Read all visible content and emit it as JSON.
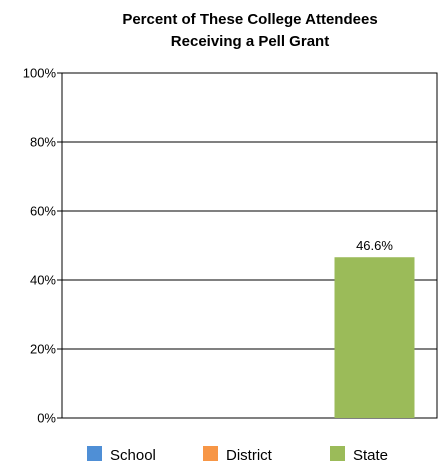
{
  "chart_data": {
    "type": "bar",
    "title_lines": [
      "Percent of These College Attendees",
      "Receiving a Pell Grant"
    ],
    "categories": [
      "School",
      "District",
      "State"
    ],
    "series": [
      {
        "name": "School",
        "value": null,
        "color": "#4F8FD6"
      },
      {
        "name": "District",
        "value": null,
        "color": "#F79646"
      },
      {
        "name": "State",
        "value": 46.6,
        "color": "#9BBB59"
      }
    ],
    "data_labels": [
      "",
      "",
      "46.6%"
    ],
    "ylim": [
      0,
      100
    ],
    "yticks": [
      0,
      20,
      40,
      60,
      80,
      100
    ],
    "ytick_labels": [
      "0%",
      "20%",
      "40%",
      "60%",
      "80%",
      "100%"
    ],
    "grid": true,
    "legend_position": "bottom"
  }
}
